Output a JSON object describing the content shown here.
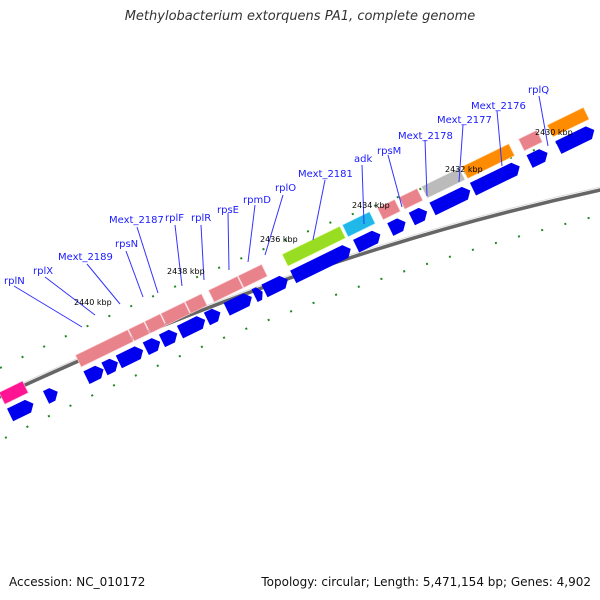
{
  "header": {
    "title": "Methylobacterium extorquens PA1, complete genome"
  },
  "footer": {
    "accession": "Accession: NC_010172",
    "summary": "Topology: circular; Length: 5,471,154 bp; Genes: 4,902"
  },
  "colors": {
    "ribosomal": "#e8838c",
    "other_feature": "#ff1493",
    "adk": "#1fb8e8",
    "mext_2181": "#99dd22",
    "mext_2177": "#bbbbbb",
    "mext_2176": "#ff8c00",
    "cds_arrow": "#0000ee",
    "backbone": "#666666",
    "tick_mark": "#228822",
    "label": "#1a1aff"
  },
  "gene_labels": [
    "rplN",
    "rplX",
    "Mext_2189",
    "rpsN",
    "Mext_2187",
    "rplF",
    "rplR",
    "rpsE",
    "rpmD",
    "rplO",
    "Mext_2181",
    "adk",
    "rpsM",
    "Mext_2178",
    "Mext_2177",
    "Mext_2176",
    "rplQ"
  ],
  "position_labels": [
    "2440 kbp",
    "2438 kbp",
    "2436 kbp",
    "2434 kbp",
    "2432 kbp",
    "2430 kbp"
  ]
}
